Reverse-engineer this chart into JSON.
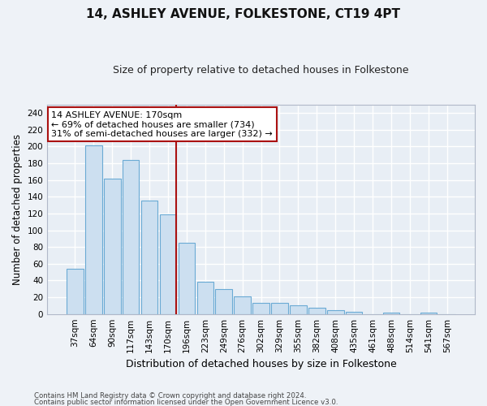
{
  "title1": "14, ASHLEY AVENUE, FOLKESTONE, CT19 4PT",
  "title2": "Size of property relative to detached houses in Folkestone",
  "xlabel": "Distribution of detached houses by size in Folkestone",
  "ylabel": "Number of detached properties",
  "categories": [
    "37sqm",
    "64sqm",
    "90sqm",
    "117sqm",
    "143sqm",
    "170sqm",
    "196sqm",
    "223sqm",
    "249sqm",
    "276sqm",
    "302sqm",
    "329sqm",
    "355sqm",
    "382sqm",
    "408sqm",
    "435sqm",
    "461sqm",
    "488sqm",
    "514sqm",
    "541sqm",
    "567sqm"
  ],
  "values": [
    54,
    201,
    162,
    184,
    135,
    119,
    85,
    38,
    30,
    21,
    13,
    13,
    10,
    7,
    5,
    3,
    0,
    2,
    0,
    2,
    0
  ],
  "bar_color": "#ccdff0",
  "bar_edge_color": "#6aaad4",
  "highlight_index": 5,
  "highlight_color": "#aa1111",
  "annotation_text": "14 ASHLEY AVENUE: 170sqm\n← 69% of detached houses are smaller (734)\n31% of semi-detached houses are larger (332) →",
  "annotation_box_color": "#ffffff",
  "annotation_box_edge": "#aa1111",
  "ylim": [
    0,
    250
  ],
  "yticks": [
    0,
    20,
    40,
    60,
    80,
    100,
    120,
    140,
    160,
    180,
    200,
    220,
    240
  ],
  "footer1": "Contains HM Land Registry data © Crown copyright and database right 2024.",
  "footer2": "Contains public sector information licensed under the Open Government Licence v3.0.",
  "bg_color": "#eef2f7",
  "grid_color": "#ffffff",
  "plot_bg": "#e8eef5"
}
